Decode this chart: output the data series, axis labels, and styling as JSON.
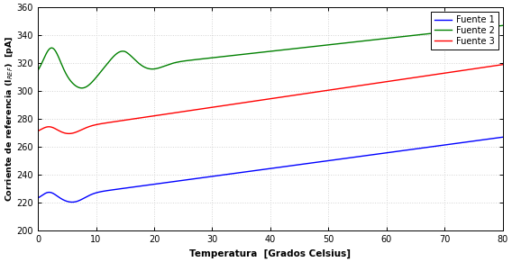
{
  "title": "",
  "xlabel": "Temperatura  [Grados Celsius]",
  "ylabel": "Corriente de referencia (I$_{REF}$)  [pA]",
  "xlim": [
    0,
    80
  ],
  "ylim": [
    200,
    360
  ],
  "xticks": [
    0,
    10,
    20,
    30,
    40,
    50,
    60,
    70,
    80
  ],
  "yticks": [
    200,
    220,
    240,
    260,
    280,
    300,
    320,
    340,
    360
  ],
  "legend": [
    "Fuente 1",
    "Fuente 2",
    "Fuente 3"
  ],
  "colors": [
    "#0000ff",
    "#008000",
    "#ff0000"
  ],
  "background_color": "#ffffff",
  "grid_color": "#d3d3d3"
}
